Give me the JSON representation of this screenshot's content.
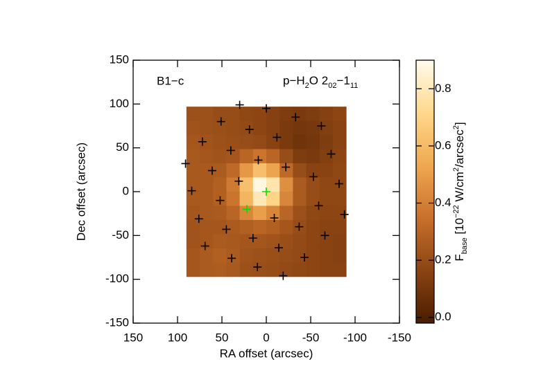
{
  "chart_data": {
    "type": "heatmap",
    "xlabel": "RA offset (arcsec)",
    "ylabel": "Dec offset (arcsec)",
    "xlim": [
      150,
      -150
    ],
    "ylim": [
      -150,
      150
    ],
    "xticks": [
      150,
      100,
      50,
      0,
      -50,
      -100,
      -150
    ],
    "yticks": [
      -150,
      -100,
      -50,
      0,
      50,
      100,
      150
    ],
    "annotations": {
      "source": "B1−c",
      "line": [
        {
          "t": "p−H"
        },
        {
          "t": "2",
          "s": "sub"
        },
        {
          "t": "O 2"
        },
        {
          "t": "02",
          "s": "sub"
        },
        {
          "t": "−1"
        },
        {
          "t": "11",
          "s": "sub"
        }
      ]
    },
    "heatmap": {
      "xlim": [
        90,
        -90
      ],
      "ylim": [
        -97,
        97
      ],
      "z": [
        [
          0.22,
          0.22,
          0.2,
          0.2,
          0.18,
          0.17,
          0.15,
          0.13,
          0.12,
          0.13,
          0.15,
          0.17
        ],
        [
          0.23,
          0.22,
          0.21,
          0.2,
          0.19,
          0.17,
          0.15,
          0.12,
          0.1,
          0.11,
          0.14,
          0.16
        ],
        [
          0.24,
          0.23,
          0.22,
          0.21,
          0.2,
          0.19,
          0.16,
          0.12,
          0.09,
          0.1,
          0.13,
          0.16
        ],
        [
          0.25,
          0.24,
          0.23,
          0.24,
          0.3,
          0.36,
          0.3,
          0.2,
          0.13,
          0.12,
          0.14,
          0.17
        ],
        [
          0.25,
          0.25,
          0.26,
          0.32,
          0.48,
          0.62,
          0.52,
          0.32,
          0.2,
          0.16,
          0.16,
          0.18
        ],
        [
          0.25,
          0.25,
          0.28,
          0.38,
          0.62,
          0.88,
          0.78,
          0.45,
          0.26,
          0.2,
          0.18,
          0.18
        ],
        [
          0.25,
          0.25,
          0.28,
          0.36,
          0.58,
          0.8,
          0.7,
          0.42,
          0.26,
          0.2,
          0.18,
          0.18
        ],
        [
          0.24,
          0.25,
          0.26,
          0.3,
          0.42,
          0.5,
          0.42,
          0.3,
          0.22,
          0.18,
          0.17,
          0.17
        ],
        [
          0.23,
          0.24,
          0.24,
          0.26,
          0.28,
          0.3,
          0.28,
          0.24,
          0.2,
          0.17,
          0.16,
          0.16
        ],
        [
          0.23,
          0.24,
          0.26,
          0.25,
          0.24,
          0.24,
          0.23,
          0.21,
          0.19,
          0.17,
          0.16,
          0.15
        ],
        [
          0.24,
          0.26,
          0.28,
          0.26,
          0.23,
          0.22,
          0.21,
          0.2,
          0.19,
          0.17,
          0.16,
          0.15
        ],
        [
          0.24,
          0.26,
          0.27,
          0.25,
          0.22,
          0.21,
          0.2,
          0.19,
          0.18,
          0.17,
          0.16,
          0.16
        ]
      ]
    },
    "colorbar": {
      "label": [
        {
          "t": "F"
        },
        {
          "t": "base",
          "s": "sub"
        },
        {
          "t": " [10"
        },
        {
          "t": "−22",
          "s": "super"
        },
        {
          "t": " W/cm"
        },
        {
          "t": "2",
          "s": "super"
        },
        {
          "t": "/arcsec"
        },
        {
          "t": "2",
          "s": "super"
        },
        {
          "t": "]"
        }
      ],
      "lim": [
        -0.02,
        0.9
      ],
      "ticks": [
        {
          "value": 0,
          "label": "0.0"
        },
        0.2,
        0.4,
        0.6,
        0.8
      ],
      "colormap": [
        "#4a1c00",
        "#8a4412",
        "#c8702c",
        "#f0a850",
        "#ffd88c",
        "#fffbec"
      ]
    },
    "series": [
      {
        "color": "#000000",
        "x": [
          30,
          0,
          -33,
          51,
          -62,
          19,
          72,
          -12,
          40,
          -73,
          9,
          91,
          61,
          -22,
          -53,
          31,
          -82,
          84,
          52,
          -59,
          -88,
          -9,
          76,
          -37,
          45,
          -66,
          15,
          69,
          -14,
          39,
          -43,
          10,
          -19
        ],
        "y": [
          99,
          95,
          85,
          80,
          75,
          71,
          57,
          62,
          47,
          43,
          36,
          32,
          24,
          28,
          17,
          12,
          9,
          1,
          -10,
          -16,
          -26,
          -30,
          -31,
          -40,
          -43,
          -50,
          -53,
          -62,
          -64,
          -76,
          -75,
          -86,
          -96
        ]
      },
      {
        "color": "#00e000",
        "x": [
          0,
          22
        ],
        "y": [
          0,
          -20
        ]
      }
    ]
  }
}
